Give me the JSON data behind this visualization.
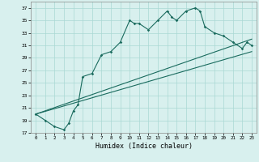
{
  "xlabel": "Humidex (Indice chaleur)",
  "bg_color": "#d8f0ee",
  "grid_color": "#aad8d4",
  "line_color": "#1a6b5e",
  "xlim": [
    -0.5,
    23.5
  ],
  "ylim": [
    17,
    38
  ],
  "yticks": [
    17,
    19,
    21,
    23,
    25,
    27,
    29,
    31,
    33,
    35,
    37
  ],
  "xticks": [
    0,
    1,
    2,
    3,
    4,
    5,
    6,
    7,
    8,
    9,
    10,
    11,
    12,
    13,
    14,
    15,
    16,
    17,
    18,
    19,
    20,
    21,
    22,
    23
  ],
  "series1": [
    [
      0,
      20.0
    ],
    [
      1,
      19.0
    ],
    [
      2,
      18.0
    ],
    [
      3,
      17.5
    ],
    [
      3.5,
      18.5
    ],
    [
      4,
      20.5
    ],
    [
      4.5,
      21.5
    ],
    [
      5,
      26.0
    ],
    [
      6,
      26.5
    ],
    [
      7,
      29.5
    ],
    [
      8,
      30.0
    ],
    [
      9,
      31.5
    ],
    [
      10,
      35.0
    ],
    [
      10.5,
      34.5
    ],
    [
      11,
      34.5
    ],
    [
      12,
      33.5
    ],
    [
      13,
      35.0
    ],
    [
      14,
      36.5
    ],
    [
      14.5,
      35.5
    ],
    [
      15,
      35.0
    ],
    [
      16,
      36.5
    ],
    [
      17,
      37.0
    ],
    [
      17.5,
      36.5
    ],
    [
      18,
      34.0
    ],
    [
      19,
      33.0
    ],
    [
      20,
      32.5
    ],
    [
      21,
      31.5
    ],
    [
      22,
      30.5
    ],
    [
      22.5,
      31.5
    ],
    [
      23,
      31.0
    ]
  ],
  "series2": [
    [
      0,
      20.0
    ],
    [
      23,
      32.0
    ]
  ],
  "series3": [
    [
      0,
      20.0
    ],
    [
      23,
      30.0
    ]
  ]
}
